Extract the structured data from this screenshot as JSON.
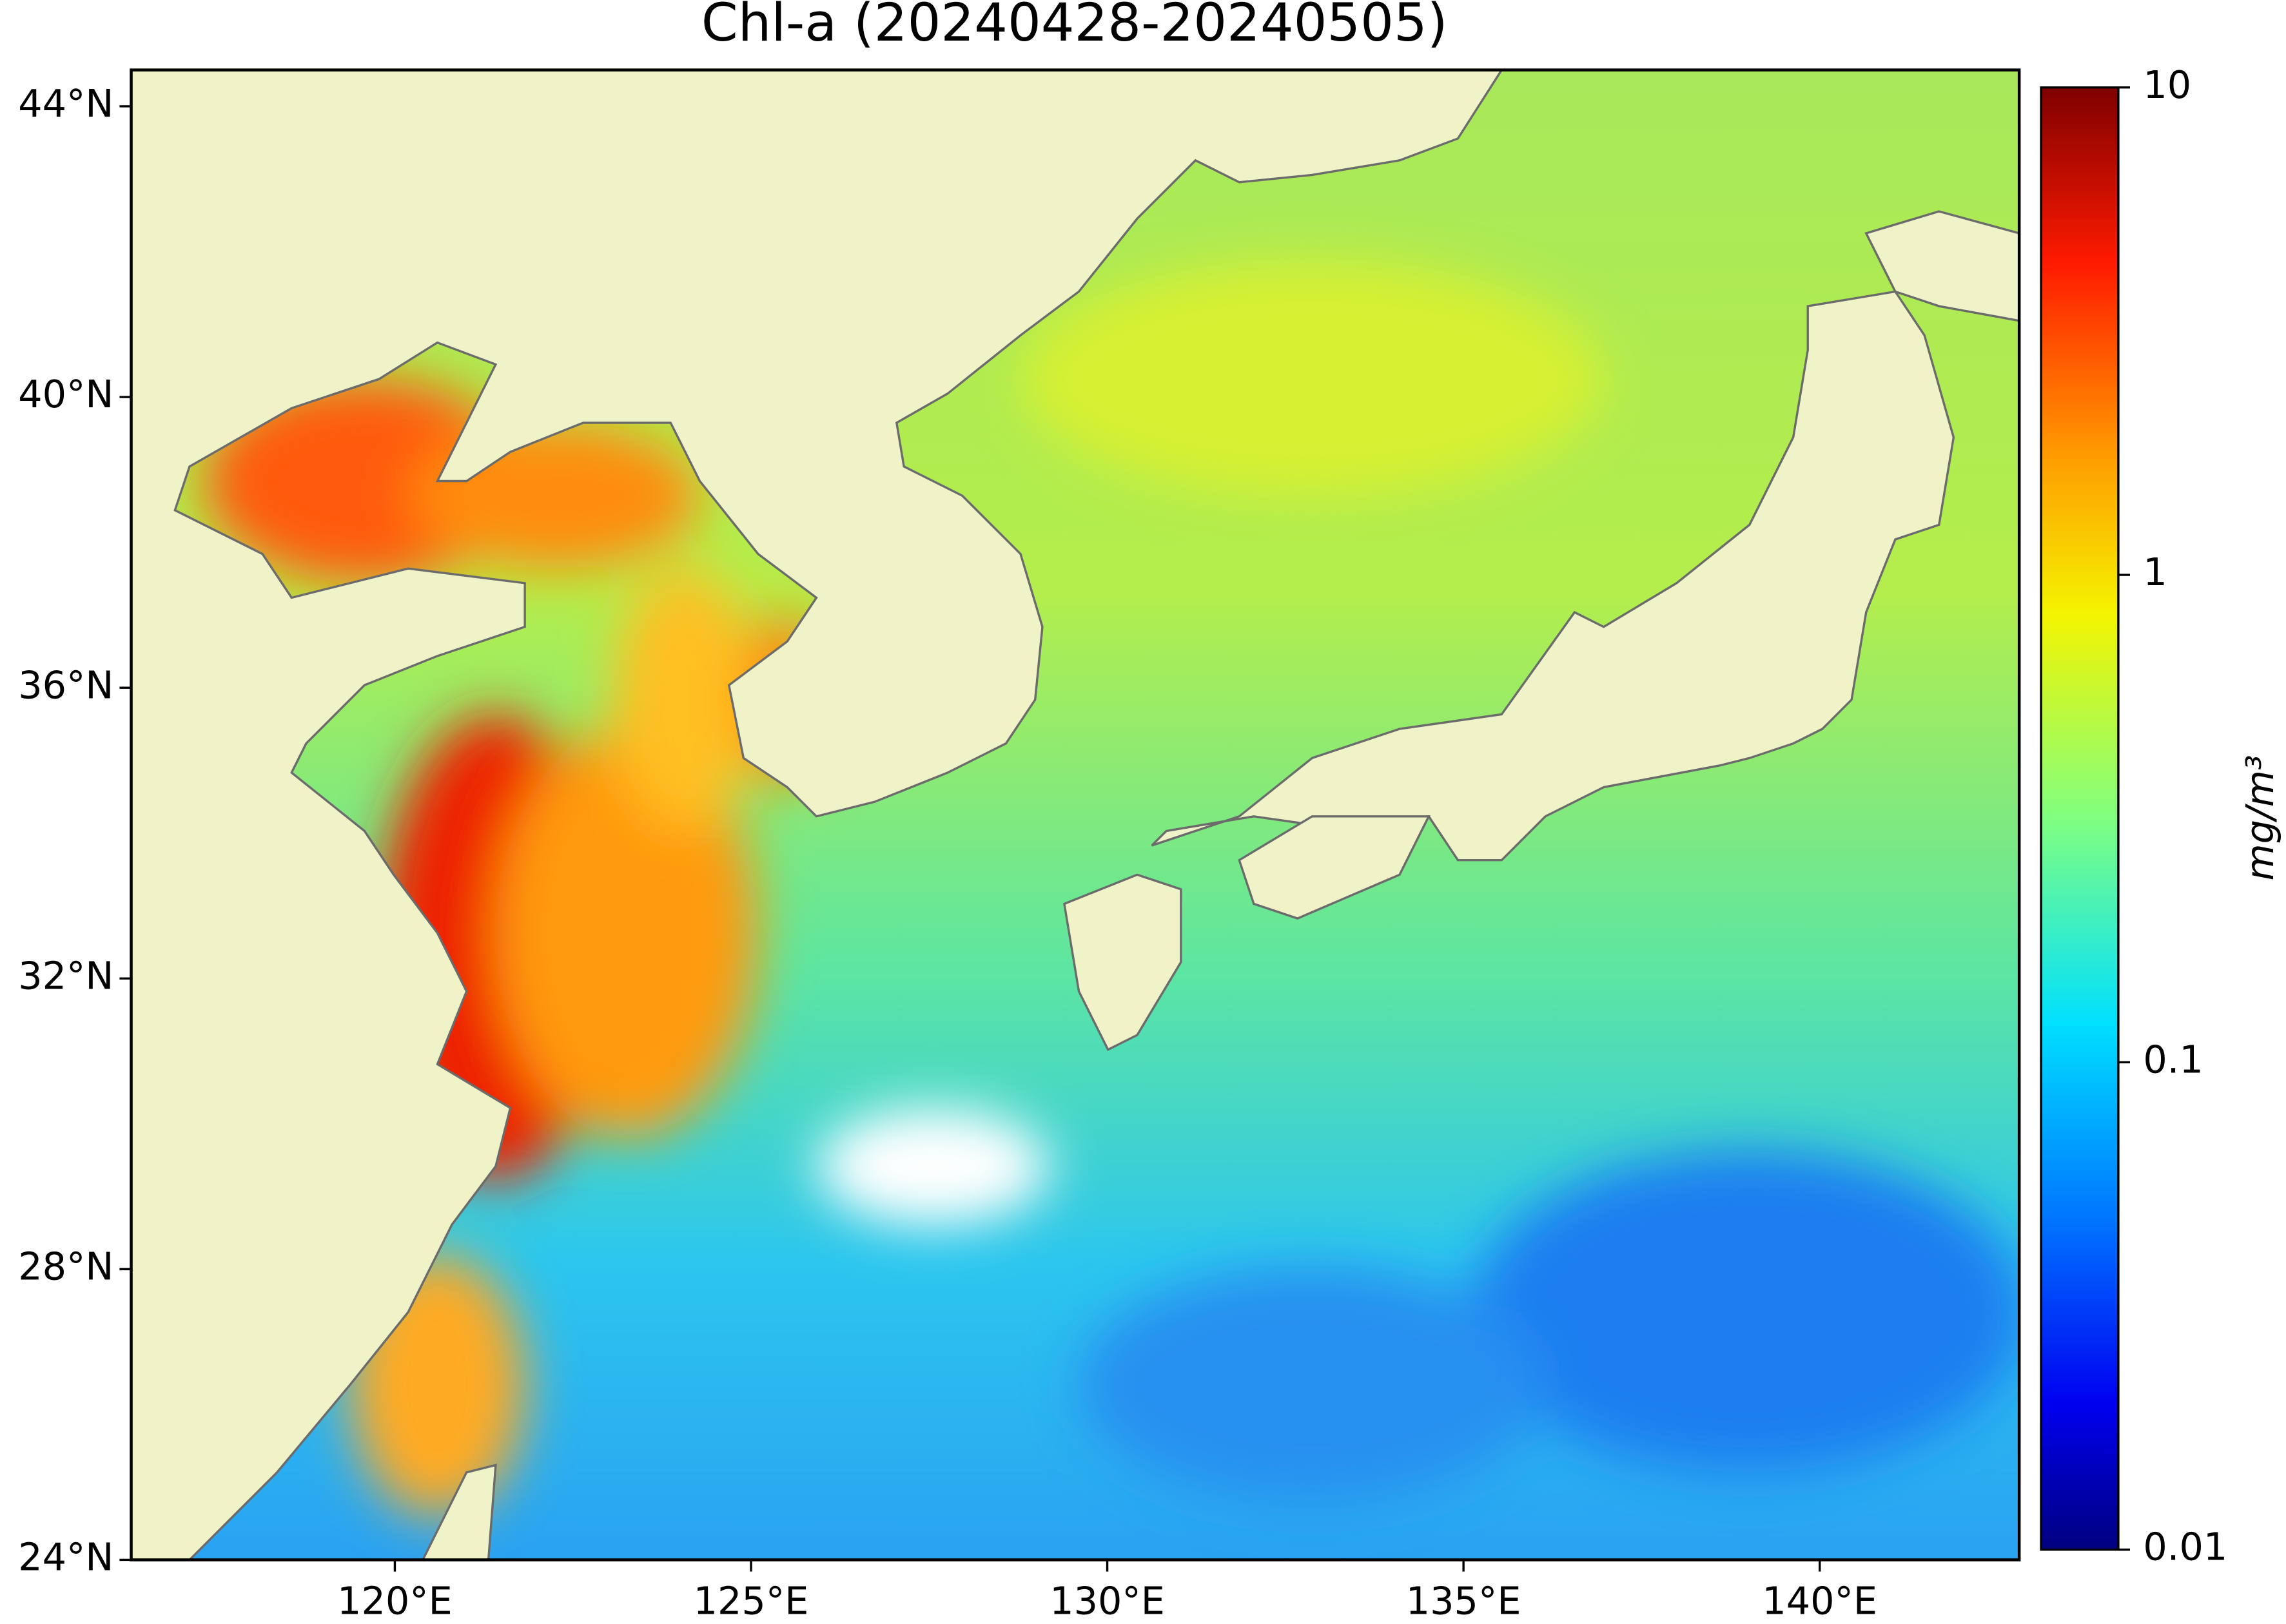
{
  "chart_data": {
    "type": "map",
    "title": "Chl-a (20240428-20240505)",
    "xlim": [
      116.3,
      142.8
    ],
    "ylim": [
      24,
      44.5
    ],
    "xticks": [
      {
        "value": 120,
        "label": "120°E"
      },
      {
        "value": 125,
        "label": "125°E"
      },
      {
        "value": 130,
        "label": "130°E"
      },
      {
        "value": 135,
        "label": "135°E"
      },
      {
        "value": 140,
        "label": "140°E"
      }
    ],
    "yticks": [
      {
        "value": 24,
        "label": "24°N"
      },
      {
        "value": 28,
        "label": "28°N"
      },
      {
        "value": 32,
        "label": "32°N"
      },
      {
        "value": 36,
        "label": "36°N"
      },
      {
        "value": 40,
        "label": "40°N"
      },
      {
        "value": 44,
        "label": "44°N"
      }
    ],
    "colorbar": {
      "label": "mg/m³",
      "lim": [
        0.01,
        10
      ],
      "ticks": [
        0.01,
        0.1,
        1,
        10
      ],
      "log": true
    }
  }
}
